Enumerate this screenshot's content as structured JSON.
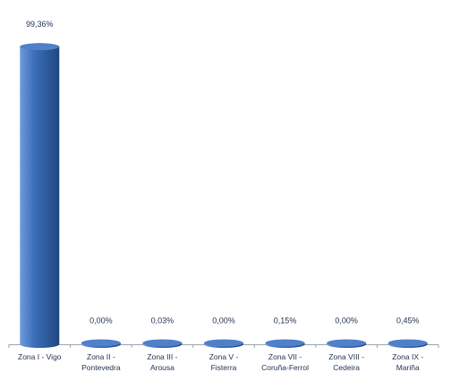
{
  "chart_data": {
    "type": "bar",
    "title": "",
    "xlabel": "",
    "ylabel": "",
    "ylim": [
      0,
      100
    ],
    "grid": false,
    "legend": "none",
    "categories": [
      [
        "Zona I - Vigo"
      ],
      [
        "Zona II -",
        "Pontevedra"
      ],
      [
        "Zona III -",
        "Arousa"
      ],
      [
        "Zona V -",
        "Fisterra"
      ],
      [
        "Zona VII -",
        "Coruña-Ferrol"
      ],
      [
        "Zona VIII -",
        "Cedeira"
      ],
      [
        "Zona IX -",
        "Mariña"
      ]
    ],
    "values": [
      99.36,
      0.0,
      0.03,
      0.0,
      0.15,
      0.0,
      0.45
    ],
    "value_labels": [
      "99,36%",
      "0,00%",
      "0,03%",
      "0,00%",
      "0,15%",
      "0,00%",
      "0,45%"
    ],
    "colors": {
      "bar_light": "#6f9bdc",
      "bar_mid": "#3d6fb9",
      "bar_dark": "#1f4680",
      "bar_top": "#4f80c8",
      "axis": "#9aa3ad",
      "text": "#1f2f4f"
    }
  }
}
